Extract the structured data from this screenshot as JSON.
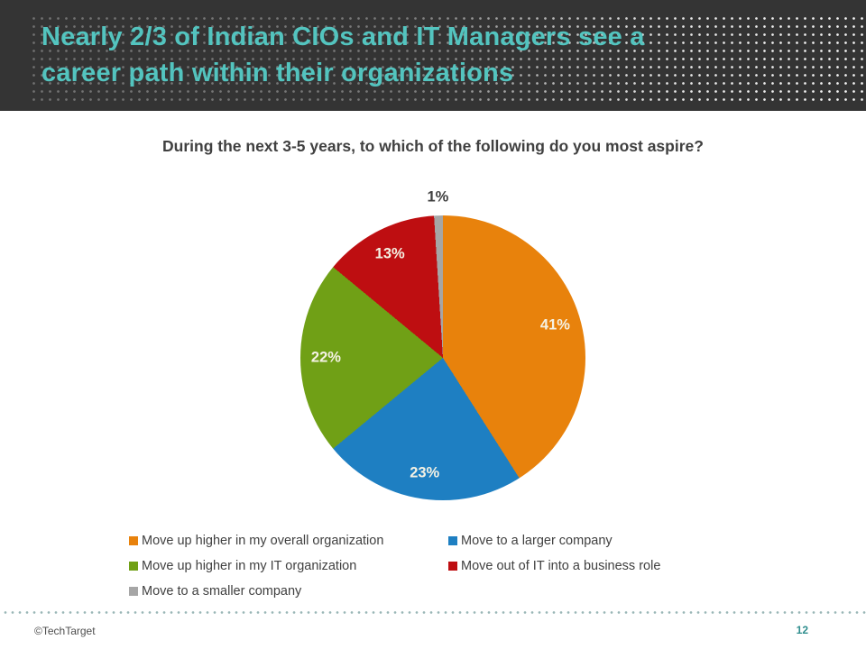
{
  "header": {
    "title_lines": [
      "Nearly 2/3 of Indian CIOs and IT Managers see a",
      "career path within their organizations"
    ]
  },
  "chart_data": {
    "type": "pie",
    "title": "During the next 3-5 years, to which of the following do you most aspire?",
    "start_angle_deg": 0,
    "direction": "clockwise",
    "legend_position": "bottom",
    "slices": [
      {
        "label": "Move up higher in my overall organization",
        "value": 41,
        "data_label": "41%",
        "color": "#e8820c",
        "label_pos": "inside"
      },
      {
        "label": "Move to a larger company",
        "value": 23,
        "data_label": "23%",
        "color": "#1e7fc2",
        "label_pos": "inside"
      },
      {
        "label": "Move up higher in my IT organization",
        "value": 22,
        "data_label": "22%",
        "color": "#70a016",
        "label_pos": "inside"
      },
      {
        "label": "Move out of IT into a business role",
        "value": 13,
        "data_label": "13%",
        "color": "#be0e11",
        "label_pos": "inside"
      },
      {
        "label": "Move to a smaller company",
        "value": 1,
        "data_label": "1%",
        "color": "#a6a6a6",
        "label_pos": "outside"
      }
    ]
  },
  "theme": {
    "header_bg": "#343434",
    "header_title_color": "#53c4bf",
    "body_text_color": "#404040",
    "inside_data_label_color": "#f5f2e4",
    "outside_data_label_color": "#404040",
    "footer_dot_color": "#9ab7b7",
    "page_number_color": "#2f8e8e"
  },
  "footer": {
    "copyright": "©TechTarget",
    "page_number": "12"
  }
}
